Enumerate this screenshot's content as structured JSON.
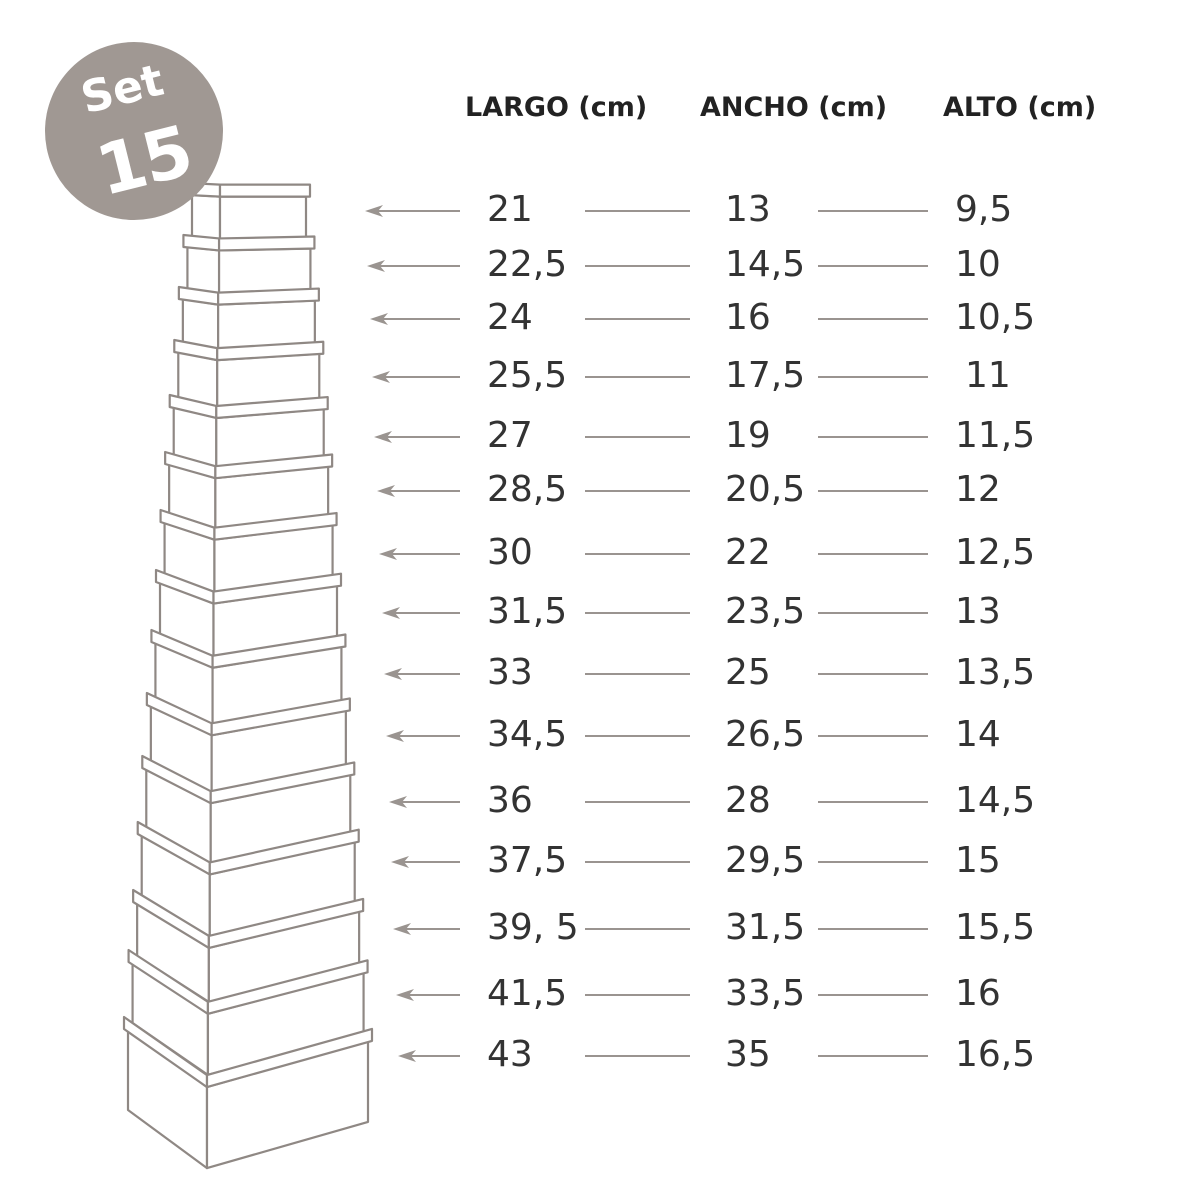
{
  "badge": {
    "label": "Set",
    "count": "15",
    "color": "#a09893"
  },
  "headers": {
    "largo": "LARGO (cm)",
    "ancho": "ANCHO (cm)",
    "alto": "ALTO (cm)"
  },
  "line_color": "#9a9490",
  "rows": [
    {
      "largo": "21",
      "ancho": "13",
      "alto": "9,5"
    },
    {
      "largo": "22,5",
      "ancho": "14,5",
      "alto": "10"
    },
    {
      "largo": "24",
      "ancho": "16",
      "alto": "10,5"
    },
    {
      "largo": "25,5",
      "ancho": "17,5",
      "alto": "11"
    },
    {
      "largo": "27",
      "ancho": "19",
      "alto": "11,5"
    },
    {
      "largo": "28,5",
      "ancho": "20,5",
      "alto": "12"
    },
    {
      "largo": "30",
      "ancho": "22",
      "alto": "12,5"
    },
    {
      "largo": "31,5",
      "ancho": "23,5",
      "alto": "13"
    },
    {
      "largo": "33",
      "ancho": "25",
      "alto": "13,5"
    },
    {
      "largo": "34,5",
      "ancho": "26,5",
      "alto": "14"
    },
    {
      "largo": "36",
      "ancho": "28",
      "alto": "14,5"
    },
    {
      "largo": "37,5",
      "ancho": "29,5",
      "alto": "15"
    },
    {
      "largo": "39, 5",
      "ancho": "31,5",
      "alto": "15,5"
    },
    {
      "largo": "41,5",
      "ancho": "33,5",
      "alto": "16"
    },
    {
      "largo": "43",
      "ancho": "35",
      "alto": "16,5"
    }
  ]
}
